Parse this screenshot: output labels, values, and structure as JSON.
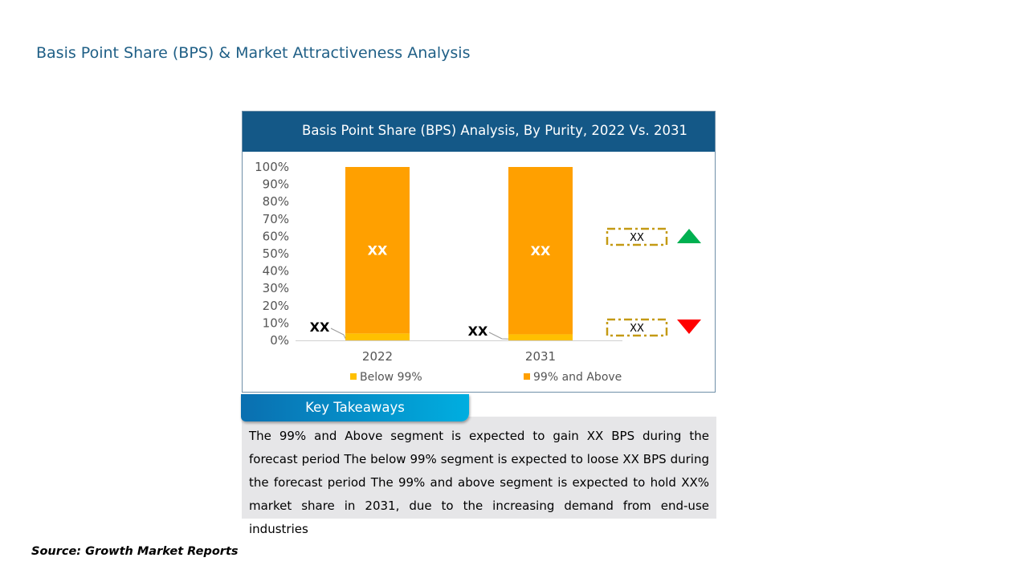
{
  "page": {
    "title": "Basis Point Share (BPS) & Market Attractiveness Analysis",
    "source": "Source: Growth Market Reports"
  },
  "chart_data": {
    "type": "bar",
    "stacked": true,
    "title": "Basis Point Share (BPS) Analysis, By Purity, 2022 Vs. 2031",
    "categories": [
      "2022",
      "2031"
    ],
    "series": [
      {
        "name": "Below 99%",
        "values": [
          4,
          3.5
        ],
        "color": "#ffc000",
        "labels": [
          "XX",
          "XX"
        ]
      },
      {
        "name": "99% and Above",
        "values": [
          96,
          96.5
        ],
        "color": "#ffa000",
        "labels": [
          "XX",
          "XX"
        ]
      }
    ],
    "yticks": [
      "0%",
      "10%",
      "20%",
      "30%",
      "40%",
      "50%",
      "60%",
      "70%",
      "80%",
      "90%",
      "100%"
    ],
    "ylim": [
      0,
      100
    ],
    "grid": false,
    "legend": "bottom",
    "indicators": [
      {
        "label": "XX",
        "direction": "up",
        "color": "#00b050"
      },
      {
        "label": "XX",
        "direction": "down",
        "color": "#ff0000"
      }
    ]
  },
  "takeaways": {
    "heading": "Key Takeaways",
    "text": "The 99% and Above segment is expected to gain XX BPS during the forecast period The below 99% segment is expected to loose XX BPS during the forecast period The 99% and above segment is expected to hold XX% market share in 2031, due to the increasing demand from end-use industries"
  }
}
